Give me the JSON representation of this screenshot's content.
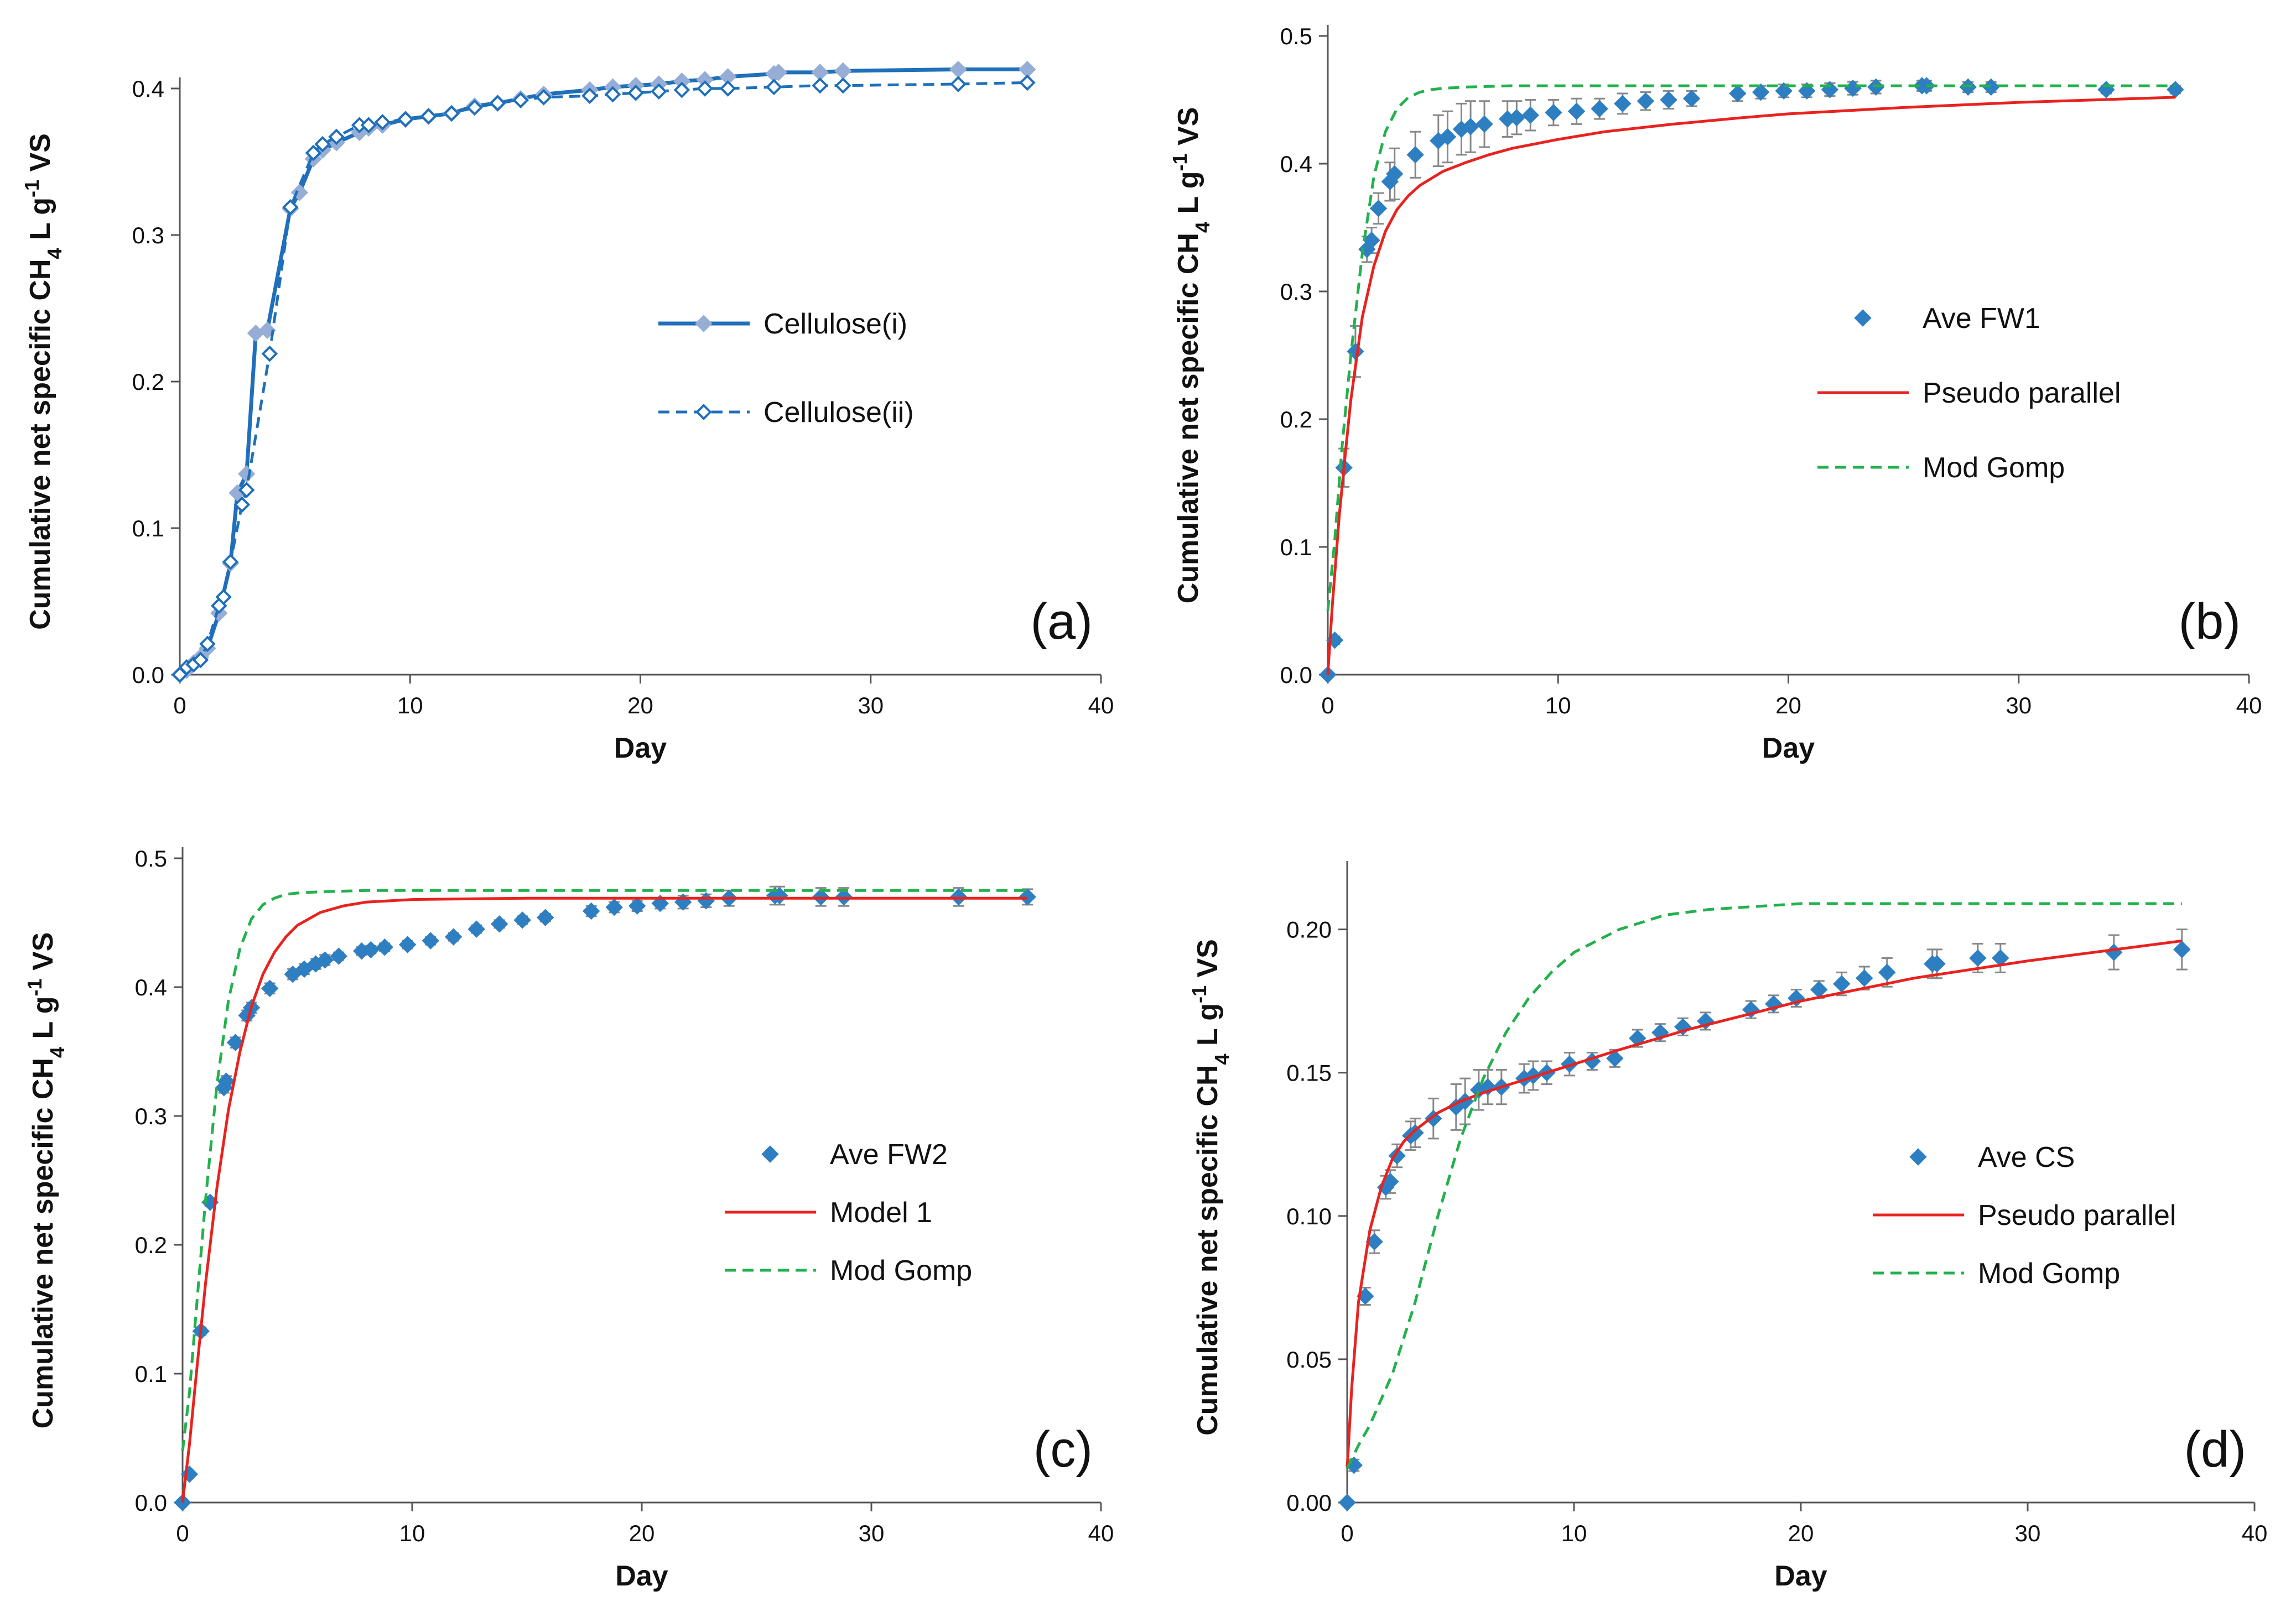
{
  "chart_data": [
    {
      "type": "line",
      "label": "(a)",
      "xlabel": "Day",
      "ylabel": {
        "pre": "Cumulative net specific CH",
        "sub": "4",
        "mid": " L g",
        "sup": "-1",
        "post": " VS"
      },
      "xlim": [
        0,
        40
      ],
      "ylim": [
        0,
        0.4
      ],
      "xticks": [
        0,
        10,
        20,
        30,
        40
      ],
      "xtick_labels": [
        "0",
        "10",
        "20",
        "30",
        "40"
      ],
      "yticks": [
        0,
        0.1,
        0.2,
        0.3,
        0.4
      ],
      "ytick_labels": [
        "0.0",
        "0.1",
        "0.2",
        "0.3",
        "0.4"
      ],
      "legend_position": "center-right",
      "series": [
        {
          "name": "Cellulose(i)",
          "kind": "line-marker",
          "marker": "diamond-filled",
          "color": "#1f6fba",
          "marker_color": "#96aed6",
          "dash": false,
          "x": [
            0,
            0.3,
            0.6,
            0.9,
            1.2,
            1.7,
            2.2,
            2.5,
            2.9,
            3.3,
            3.8,
            4.8,
            5.2,
            5.8,
            6.2,
            6.8,
            7.8,
            8.2,
            8.8,
            9.8,
            10.8,
            11.8,
            12.8,
            13.8,
            14.8,
            15.8,
            17.8,
            18.8,
            19.8,
            20.8,
            21.8,
            22.8,
            23.8,
            25.8,
            26.0,
            27.8,
            28.8,
            33.8,
            36.8
          ],
          "y": [
            0.0,
            0.003,
            0.008,
            0.012,
            0.018,
            0.042,
            0.076,
            0.124,
            0.137,
            0.233,
            0.235,
            0.318,
            0.329,
            0.352,
            0.358,
            0.363,
            0.37,
            0.373,
            0.375,
            0.379,
            0.381,
            0.383,
            0.388,
            0.39,
            0.393,
            0.396,
            0.399,
            0.401,
            0.402,
            0.403,
            0.405,
            0.406,
            0.408,
            0.41,
            0.411,
            0.411,
            0.412,
            0.413,
            0.413
          ]
        },
        {
          "name": "Cellulose(ii)",
          "kind": "line-marker",
          "marker": "diamond-open",
          "color": "#1f6fba",
          "marker_color": "#1f6fba",
          "dash": true,
          "x": [
            0,
            0.3,
            0.6,
            0.9,
            1.2,
            1.7,
            1.9,
            2.2,
            2.7,
            2.9,
            3.9,
            4.8,
            5.8,
            6.2,
            6.8,
            7.8,
            8.2,
            8.8,
            9.8,
            10.8,
            11.8,
            12.8,
            13.8,
            14.8,
            15.8,
            17.8,
            18.8,
            19.8,
            20.8,
            21.8,
            22.8,
            23.8,
            25.8,
            27.8,
            28.8,
            33.8,
            36.8
          ],
          "y": [
            0.0,
            0.005,
            0.007,
            0.01,
            0.021,
            0.047,
            0.053,
            0.077,
            0.116,
            0.126,
            0.219,
            0.319,
            0.356,
            0.362,
            0.367,
            0.375,
            0.375,
            0.377,
            0.379,
            0.381,
            0.383,
            0.387,
            0.39,
            0.392,
            0.394,
            0.395,
            0.396,
            0.397,
            0.398,
            0.399,
            0.4,
            0.4,
            0.401,
            0.402,
            0.402,
            0.403,
            0.404
          ]
        }
      ]
    },
    {
      "type": "scatter",
      "label": "(b)",
      "xlabel": "Day",
      "ylabel": {
        "pre": "Cumulative net specific CH",
        "sub": "4",
        "mid": " L g",
        "sup": "-1",
        "post": " VS"
      },
      "xlim": [
        0,
        40
      ],
      "ylim": [
        0,
        0.5
      ],
      "xticks": [
        0,
        10,
        20,
        30,
        40
      ],
      "xtick_labels": [
        "0",
        "10",
        "20",
        "30",
        "40"
      ],
      "yticks": [
        0,
        0.1,
        0.2,
        0.3,
        0.4,
        0.5
      ],
      "ytick_labels": [
        "0.0",
        "0.1",
        "0.2",
        "0.3",
        "0.4",
        "0.5"
      ],
      "legend_position": "center-right",
      "series": [
        {
          "name": "Ave FW1",
          "kind": "marker",
          "marker": "diamond-filled",
          "color": "#2e7fc2",
          "dash": false,
          "x": [
            0,
            0.3,
            0.7,
            1.2,
            1.7,
            1.9,
            2.2,
            2.7,
            2.9,
            3.8,
            4.8,
            5.2,
            5.8,
            6.2,
            6.8,
            7.8,
            8.2,
            8.8,
            9.8,
            10.8,
            11.8,
            12.8,
            13.8,
            14.8,
            15.8,
            17.8,
            18.8,
            19.8,
            20.8,
            21.8,
            22.8,
            23.8,
            25.8,
            26.0,
            27.8,
            28.8,
            33.8,
            36.8
          ],
          "y": [
            0.0,
            0.027,
            0.162,
            0.253,
            0.333,
            0.34,
            0.365,
            0.386,
            0.392,
            0.407,
            0.418,
            0.421,
            0.427,
            0.429,
            0.431,
            0.435,
            0.436,
            0.438,
            0.44,
            0.441,
            0.443,
            0.447,
            0.449,
            0.45,
            0.451,
            0.455,
            0.456,
            0.457,
            0.457,
            0.458,
            0.459,
            0.46,
            0.461,
            0.461,
            0.46,
            0.46,
            0.458,
            0.458
          ],
          "err": [
            0,
            0.003,
            0.015,
            0.02,
            0.01,
            0.01,
            0.012,
            0.015,
            0.02,
            0.018,
            0.02,
            0.02,
            0.02,
            0.02,
            0.018,
            0.014,
            0.013,
            0.012,
            0.01,
            0.01,
            0.008,
            0.008,
            0.007,
            0.007,
            0.006,
            0.006,
            0.005,
            0.005,
            0.005,
            0.005,
            0.005,
            0.005,
            0.004,
            0.004,
            0.004,
            0.004,
            0.003,
            0.003
          ]
        },
        {
          "name": "Pseudo parallel",
          "kind": "line",
          "color": "#e8231f",
          "dash": false,
          "x": [
            0,
            0.2,
            0.5,
            0.8,
            1,
            1.5,
            2,
            2.5,
            3,
            3.5,
            4,
            5,
            6,
            7,
            8,
            10,
            12,
            15,
            18,
            20,
            25,
            30,
            36.8
          ],
          "y": [
            0.0,
            0.055,
            0.125,
            0.18,
            0.215,
            0.28,
            0.32,
            0.347,
            0.364,
            0.375,
            0.383,
            0.394,
            0.401,
            0.407,
            0.412,
            0.419,
            0.425,
            0.431,
            0.436,
            0.439,
            0.444,
            0.448,
            0.452
          ]
        },
        {
          "name": "Mod Gomp",
          "kind": "line",
          "color": "#22b14c",
          "dash": true,
          "x": [
            0,
            0.3,
            0.6,
            1,
            1.5,
            2,
            2.5,
            3,
            3.5,
            4,
            4.5,
            5,
            6,
            8,
            10,
            15,
            20,
            30,
            36.8
          ],
          "y": [
            0.05,
            0.105,
            0.175,
            0.25,
            0.33,
            0.39,
            0.425,
            0.443,
            0.452,
            0.456,
            0.458,
            0.459,
            0.46,
            0.461,
            0.461,
            0.461,
            0.461,
            0.461,
            0.461
          ]
        }
      ]
    },
    {
      "type": "scatter",
      "label": "(c)",
      "xlabel": "Day",
      "ylabel": {
        "pre": "Cumulative net specific CH",
        "sub": "4",
        "mid": " L g",
        "sup": "-1",
        "post": " VS"
      },
      "xlim": [
        0,
        40
      ],
      "ylim": [
        0,
        0.5
      ],
      "xticks": [
        0,
        10,
        20,
        30,
        40
      ],
      "xtick_labels": [
        "0",
        "10",
        "20",
        "30",
        "40"
      ],
      "yticks": [
        0,
        0.1,
        0.2,
        0.3,
        0.4,
        0.5
      ],
      "ytick_labels": [
        "0.0",
        "0.1",
        "0.2",
        "0.3",
        "0.4",
        "0.5"
      ],
      "legend_position": "center-right",
      "series": [
        {
          "name": "Ave FW2",
          "kind": "marker",
          "marker": "diamond-filled",
          "color": "#2e7fc2",
          "dash": false,
          "x": [
            0,
            0.3,
            0.8,
            1.2,
            1.8,
            1.9,
            2.3,
            2.8,
            3.0,
            3.8,
            4.8,
            5.3,
            5.8,
            6.2,
            6.8,
            7.8,
            8.2,
            8.8,
            9.8,
            10.8,
            11.8,
            12.8,
            13.8,
            14.8,
            15.8,
            17.8,
            18.8,
            19.8,
            20.8,
            21.8,
            22.8,
            23.8,
            25.8,
            26.0,
            27.8,
            28.8,
            33.8,
            36.8
          ],
          "y": [
            0.0,
            0.022,
            0.133,
            0.233,
            0.322,
            0.327,
            0.357,
            0.378,
            0.384,
            0.399,
            0.41,
            0.414,
            0.418,
            0.421,
            0.424,
            0.428,
            0.429,
            0.431,
            0.433,
            0.436,
            0.439,
            0.445,
            0.449,
            0.452,
            0.454,
            0.459,
            0.462,
            0.463,
            0.465,
            0.466,
            0.467,
            0.469,
            0.471,
            0.471,
            0.47,
            0.47,
            0.47,
            0.47
          ],
          "err": [
            0,
            0.002,
            0.003,
            0.003,
            0.004,
            0.004,
            0.004,
            0.004,
            0.004,
            0.004,
            0.004,
            0.004,
            0.004,
            0.004,
            0.003,
            0.003,
            0.003,
            0.003,
            0.003,
            0.003,
            0.003,
            0.003,
            0.003,
            0.003,
            0.003,
            0.004,
            0.004,
            0.004,
            0.004,
            0.005,
            0.005,
            0.006,
            0.007,
            0.007,
            0.007,
            0.007,
            0.007,
            0.006
          ]
        },
        {
          "name": "Model 1",
          "kind": "line",
          "color": "#e8231f",
          "dash": false,
          "x": [
            0,
            0.3,
            0.6,
            1,
            1.5,
            2,
            2.5,
            3,
            3.5,
            4,
            4.5,
            5,
            6,
            7,
            8,
            10,
            15,
            20,
            30,
            36.8
          ],
          "y": [
            0.0,
            0.045,
            0.1,
            0.17,
            0.245,
            0.305,
            0.35,
            0.385,
            0.41,
            0.427,
            0.439,
            0.448,
            0.458,
            0.463,
            0.466,
            0.468,
            0.469,
            0.469,
            0.469,
            0.469
          ]
        },
        {
          "name": "Mod Gomp",
          "kind": "line",
          "color": "#22b14c",
          "dash": true,
          "x": [
            0,
            0.3,
            0.6,
            1,
            1.5,
            2,
            2.5,
            3,
            3.5,
            4,
            4.5,
            5,
            6,
            8,
            10,
            15,
            20,
            30,
            36.8
          ],
          "y": [
            0.04,
            0.085,
            0.15,
            0.235,
            0.325,
            0.39,
            0.43,
            0.453,
            0.464,
            0.469,
            0.472,
            0.473,
            0.474,
            0.475,
            0.475,
            0.475,
            0.475,
            0.475,
            0.475
          ]
        }
      ]
    },
    {
      "type": "scatter",
      "label": "(d)",
      "xlabel": "Day",
      "ylabel": {
        "pre": "Cumulative net specific CH",
        "sub": "4",
        "mid": " L g",
        "sup": "-1",
        "post": " VS"
      },
      "xlim": [
        0,
        40
      ],
      "ylim": [
        0,
        0.22
      ],
      "xticks": [
        0,
        10,
        20,
        30,
        40
      ],
      "xtick_labels": [
        "0",
        "10",
        "20",
        "30",
        "40"
      ],
      "yticks": [
        0,
        0.05,
        0.1,
        0.15,
        0.2
      ],
      "ytick_labels": [
        "0.00",
        "0.05",
        "0.10",
        "0.15",
        "0.20"
      ],
      "legend_position": "center-right",
      "series": [
        {
          "name": "Ave CS",
          "kind": "marker",
          "marker": "diamond-filled",
          "color": "#2e7fc2",
          "dash": false,
          "x": [
            0,
            0.3,
            0.8,
            1.2,
            1.7,
            1.9,
            2.2,
            2.8,
            3.0,
            3.8,
            4.8,
            5.2,
            5.8,
            6.2,
            6.8,
            7.8,
            8.2,
            8.8,
            9.8,
            10.8,
            11.8,
            12.8,
            13.8,
            14.8,
            15.8,
            17.8,
            18.8,
            19.8,
            20.8,
            21.8,
            22.8,
            23.8,
            25.8,
            26.0,
            27.8,
            28.8,
            33.8,
            36.8
          ],
          "y": [
            0.0,
            0.013,
            0.072,
            0.091,
            0.11,
            0.112,
            0.121,
            0.128,
            0.129,
            0.134,
            0.138,
            0.14,
            0.144,
            0.145,
            0.145,
            0.148,
            0.149,
            0.15,
            0.153,
            0.154,
            0.155,
            0.162,
            0.164,
            0.166,
            0.168,
            0.172,
            0.174,
            0.176,
            0.179,
            0.181,
            0.183,
            0.185,
            0.188,
            0.188,
            0.19,
            0.19,
            0.192,
            0.193
          ],
          "err": [
            0,
            0.002,
            0.003,
            0.004,
            0.004,
            0.004,
            0.004,
            0.005,
            0.005,
            0.007,
            0.008,
            0.008,
            0.007,
            0.006,
            0.006,
            0.005,
            0.005,
            0.004,
            0.004,
            0.003,
            0.003,
            0.003,
            0.003,
            0.003,
            0.003,
            0.003,
            0.003,
            0.003,
            0.003,
            0.004,
            0.004,
            0.005,
            0.005,
            0.005,
            0.005,
            0.005,
            0.006,
            0.007
          ]
        },
        {
          "name": "Pseudo parallel",
          "kind": "line",
          "color": "#e8231f",
          "dash": false,
          "x": [
            0,
            0.2,
            0.5,
            1,
            1.5,
            2,
            2.5,
            3,
            4,
            5,
            6,
            8,
            10,
            12,
            15,
            18,
            20,
            25,
            30,
            36.8
          ],
          "y": [
            0.012,
            0.04,
            0.07,
            0.095,
            0.11,
            0.12,
            0.126,
            0.13,
            0.136,
            0.14,
            0.143,
            0.148,
            0.153,
            0.158,
            0.165,
            0.171,
            0.175,
            0.183,
            0.189,
            0.196
          ]
        },
        {
          "name": "Mod Gomp",
          "kind": "line",
          "color": "#22b14c",
          "dash": true,
          "x": [
            0,
            0.5,
            1,
            2,
            3,
            4,
            5,
            6,
            7,
            8,
            9,
            10,
            12,
            14,
            16,
            18,
            20,
            25,
            30,
            36.8
          ],
          "y": [
            0.012,
            0.02,
            0.027,
            0.045,
            0.07,
            0.1,
            0.127,
            0.148,
            0.164,
            0.176,
            0.185,
            0.192,
            0.2,
            0.205,
            0.207,
            0.208,
            0.209,
            0.209,
            0.209,
            0.209
          ]
        }
      ]
    }
  ]
}
